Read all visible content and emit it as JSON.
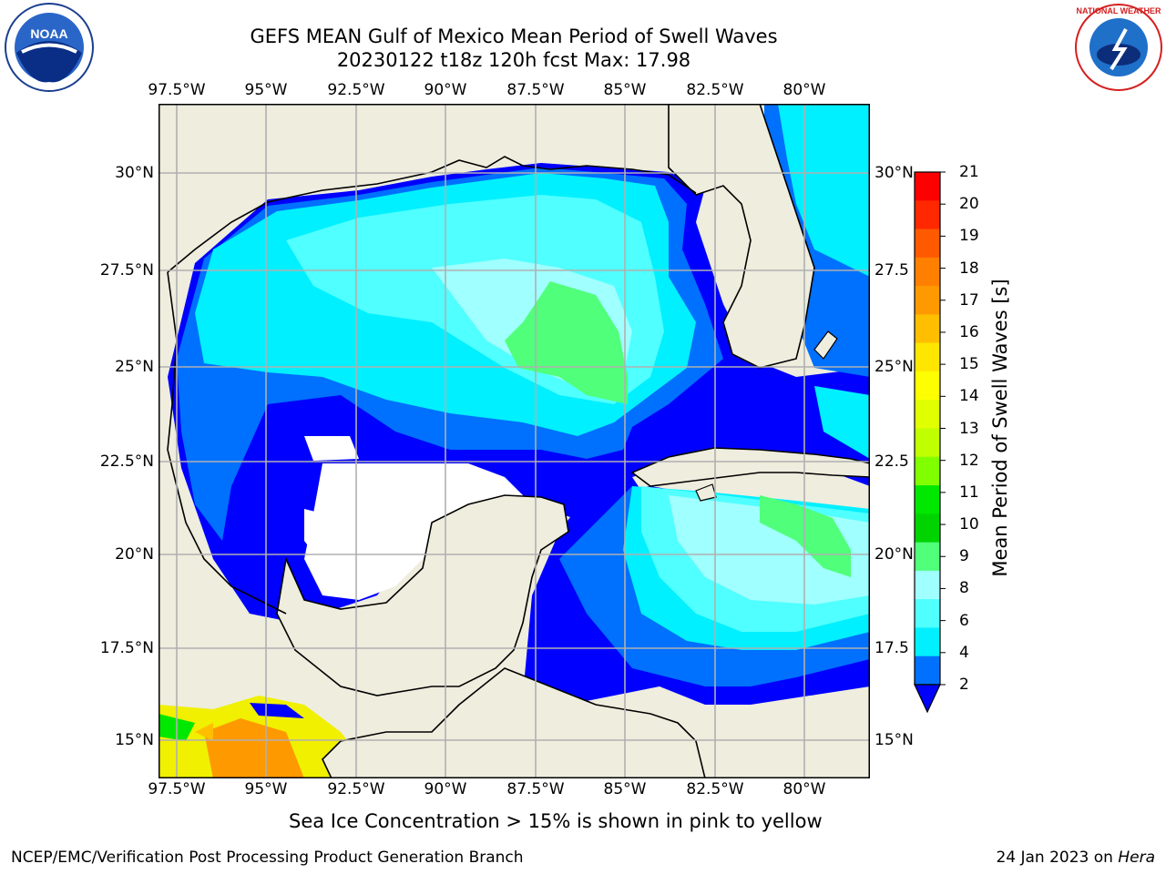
{
  "title": {
    "line1": "GEFS MEAN Gulf of Mexico Mean Period of Swell Waves",
    "line2": "20230122 t18z 120h fcst   Max: 17.98"
  },
  "logos": {
    "left": {
      "icon": "noaa-logo-icon",
      "text": "NOAA"
    },
    "right": {
      "icon": "nws-logo-icon",
      "text": "NATIONAL WEATHER SERVICE"
    }
  },
  "map": {
    "lon_ticks": [
      "97.5°W",
      "95°W",
      "92.5°W",
      "90°W",
      "87.5°W",
      "85°W",
      "82.5°W",
      "80°W"
    ],
    "lat_ticks_left": [
      "30°N",
      "27.5°N",
      "25°N",
      "22.5°N",
      "20°N",
      "17.5°N",
      "15°N"
    ],
    "lat_ticks_right": [
      "30°N",
      "27.5",
      "25°N",
      "22.5",
      "20°N",
      "17.5",
      "15°N"
    ],
    "land_color": "#eeedde",
    "grid_color": "#b0b0b0"
  },
  "colorbar": {
    "label": "Mean Period of Swell Waves [s]",
    "ticks": [
      "21",
      "20",
      "19",
      "18",
      "17",
      "16",
      "15",
      "14",
      "13",
      "12",
      "11",
      "10",
      "9",
      "8",
      "6",
      "4",
      "2"
    ],
    "colors": [
      "#ff0000",
      "#ff2800",
      "#ff5a00",
      "#ff7f00",
      "#ff9900",
      "#ffbf00",
      "#ffe600",
      "#fdff00",
      "#e0ff00",
      "#c0ff00",
      "#80ff00",
      "#00e800",
      "#00d400",
      "#50ff7a",
      "#a0ffff",
      "#50ffff",
      "#00f0ff",
      "#0070ff"
    ],
    "extend_color": "#0000ff"
  },
  "caption": "Sea Ice Concentration > 15% is shown in pink to yellow",
  "footer": {
    "left": "NCEP/EMC/Verification Post Processing Product Generation Branch",
    "right_prefix": "24 Jan 2023 on ",
    "right_host": "Hera"
  }
}
